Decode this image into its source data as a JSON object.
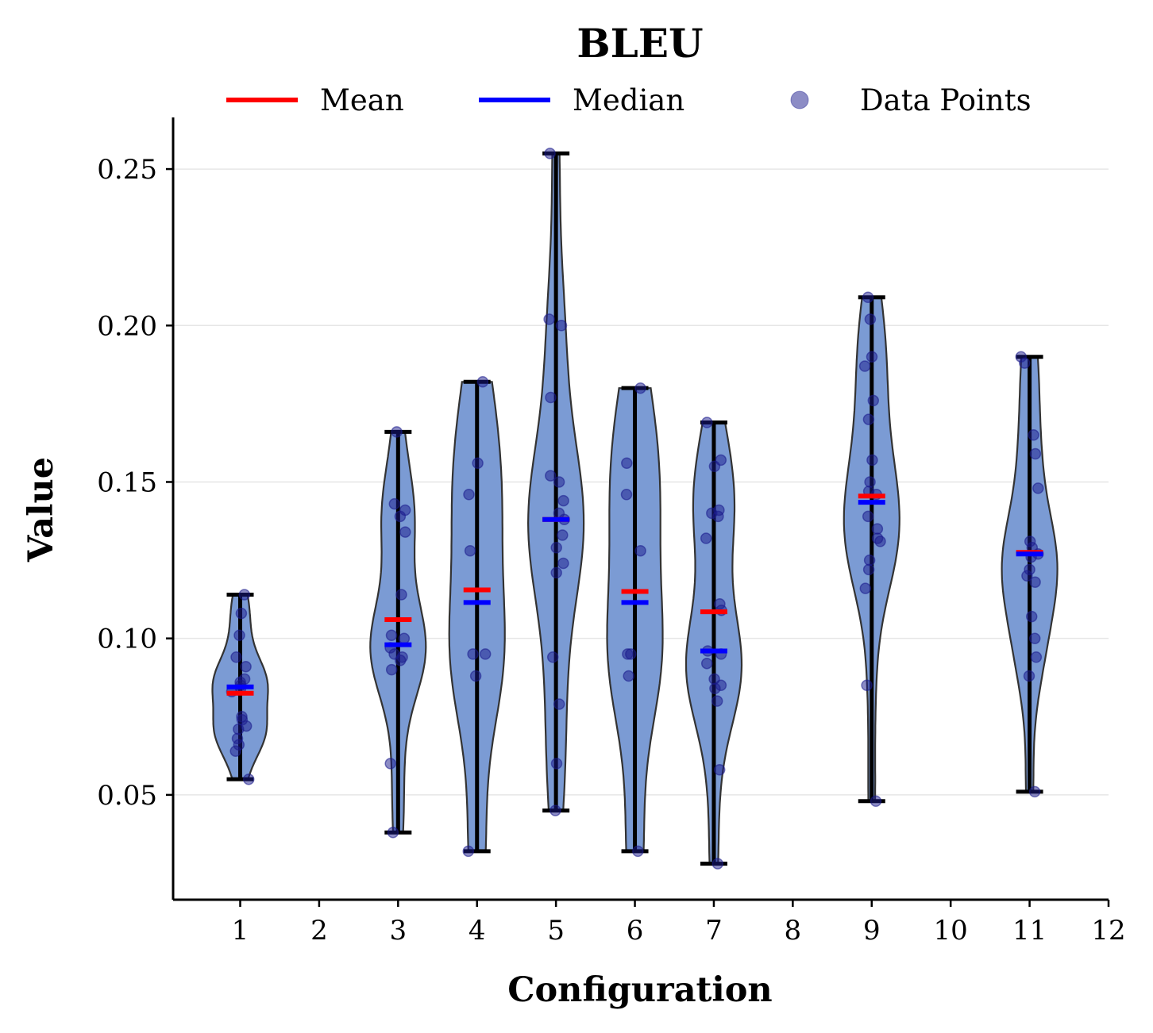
{
  "chart_data": {
    "type": "violin",
    "title": "BLEU",
    "xlabel": "Configuration",
    "ylabel": "Value",
    "xlim": [
      0.15,
      12.0
    ],
    "ylim": [
      0.0165,
      0.2665
    ],
    "x_ticks": [
      "1",
      "2",
      "3",
      "4",
      "5",
      "6",
      "7",
      "8",
      "9",
      "10",
      "11",
      "12"
    ],
    "y_ticks": [
      "0.05",
      "0.10",
      "0.15",
      "0.20",
      "0.25"
    ],
    "grid": "y",
    "legend": {
      "placement": "top-center",
      "entries": [
        "Mean",
        "Median",
        "Data Points"
      ]
    },
    "colors": {
      "violin_fill": "#7b9bd4",
      "violin_edge": "#333333",
      "mean": "#ff0000",
      "median": "#0000ff",
      "points": "#1a1a8c",
      "range_bar": "#000000"
    },
    "groups": [
      {
        "x": 1,
        "min": 0.055,
        "max": 0.114,
        "mean": 0.0825,
        "median": 0.0845,
        "points": [
          0.114,
          0.108,
          0.101,
          0.094,
          0.091,
          0.087,
          0.086,
          0.085,
          0.084,
          0.083,
          0.075,
          0.074,
          0.071,
          0.072,
          0.068,
          0.066,
          0.064,
          0.055
        ]
      },
      {
        "x": 3,
        "min": 0.038,
        "max": 0.166,
        "mean": 0.106,
        "median": 0.098,
        "points": [
          0.166,
          0.143,
          0.141,
          0.139,
          0.134,
          0.114,
          0.101,
          0.1,
          0.097,
          0.095,
          0.094,
          0.093,
          0.09,
          0.06,
          0.038
        ]
      },
      {
        "x": 4,
        "min": 0.032,
        "max": 0.182,
        "mean": 0.1155,
        "median": 0.1115,
        "points": [
          0.182,
          0.156,
          0.146,
          0.128,
          0.095,
          0.095,
          0.088,
          0.032
        ]
      },
      {
        "x": 5,
        "min": 0.045,
        "max": 0.255,
        "mean": 0.138,
        "median": 0.138,
        "points": [
          0.255,
          0.202,
          0.2,
          0.177,
          0.152,
          0.15,
          0.144,
          0.14,
          0.138,
          0.133,
          0.129,
          0.124,
          0.121,
          0.094,
          0.079,
          0.06,
          0.045
        ]
      },
      {
        "x": 6,
        "min": 0.032,
        "max": 0.18,
        "mean": 0.115,
        "median": 0.1115,
        "points": [
          0.18,
          0.156,
          0.146,
          0.128,
          0.095,
          0.095,
          0.088,
          0.032
        ]
      },
      {
        "x": 7,
        "min": 0.028,
        "max": 0.169,
        "mean": 0.1085,
        "median": 0.096,
        "points": [
          0.169,
          0.157,
          0.155,
          0.141,
          0.14,
          0.139,
          0.132,
          0.111,
          0.109,
          0.096,
          0.095,
          0.092,
          0.087,
          0.085,
          0.084,
          0.08,
          0.058,
          0.028
        ]
      },
      {
        "x": 9,
        "min": 0.048,
        "max": 0.209,
        "mean": 0.1455,
        "median": 0.1435,
        "points": [
          0.209,
          0.202,
          0.19,
          0.187,
          0.176,
          0.17,
          0.157,
          0.15,
          0.147,
          0.146,
          0.139,
          0.135,
          0.132,
          0.131,
          0.125,
          0.122,
          0.116,
          0.085,
          0.048
        ]
      },
      {
        "x": 11,
        "min": 0.051,
        "max": 0.19,
        "mean": 0.1275,
        "median": 0.127,
        "points": [
          0.19,
          0.188,
          0.165,
          0.159,
          0.148,
          0.131,
          0.129,
          0.127,
          0.126,
          0.122,
          0.12,
          0.118,
          0.107,
          0.1,
          0.094,
          0.088,
          0.051
        ]
      }
    ]
  }
}
